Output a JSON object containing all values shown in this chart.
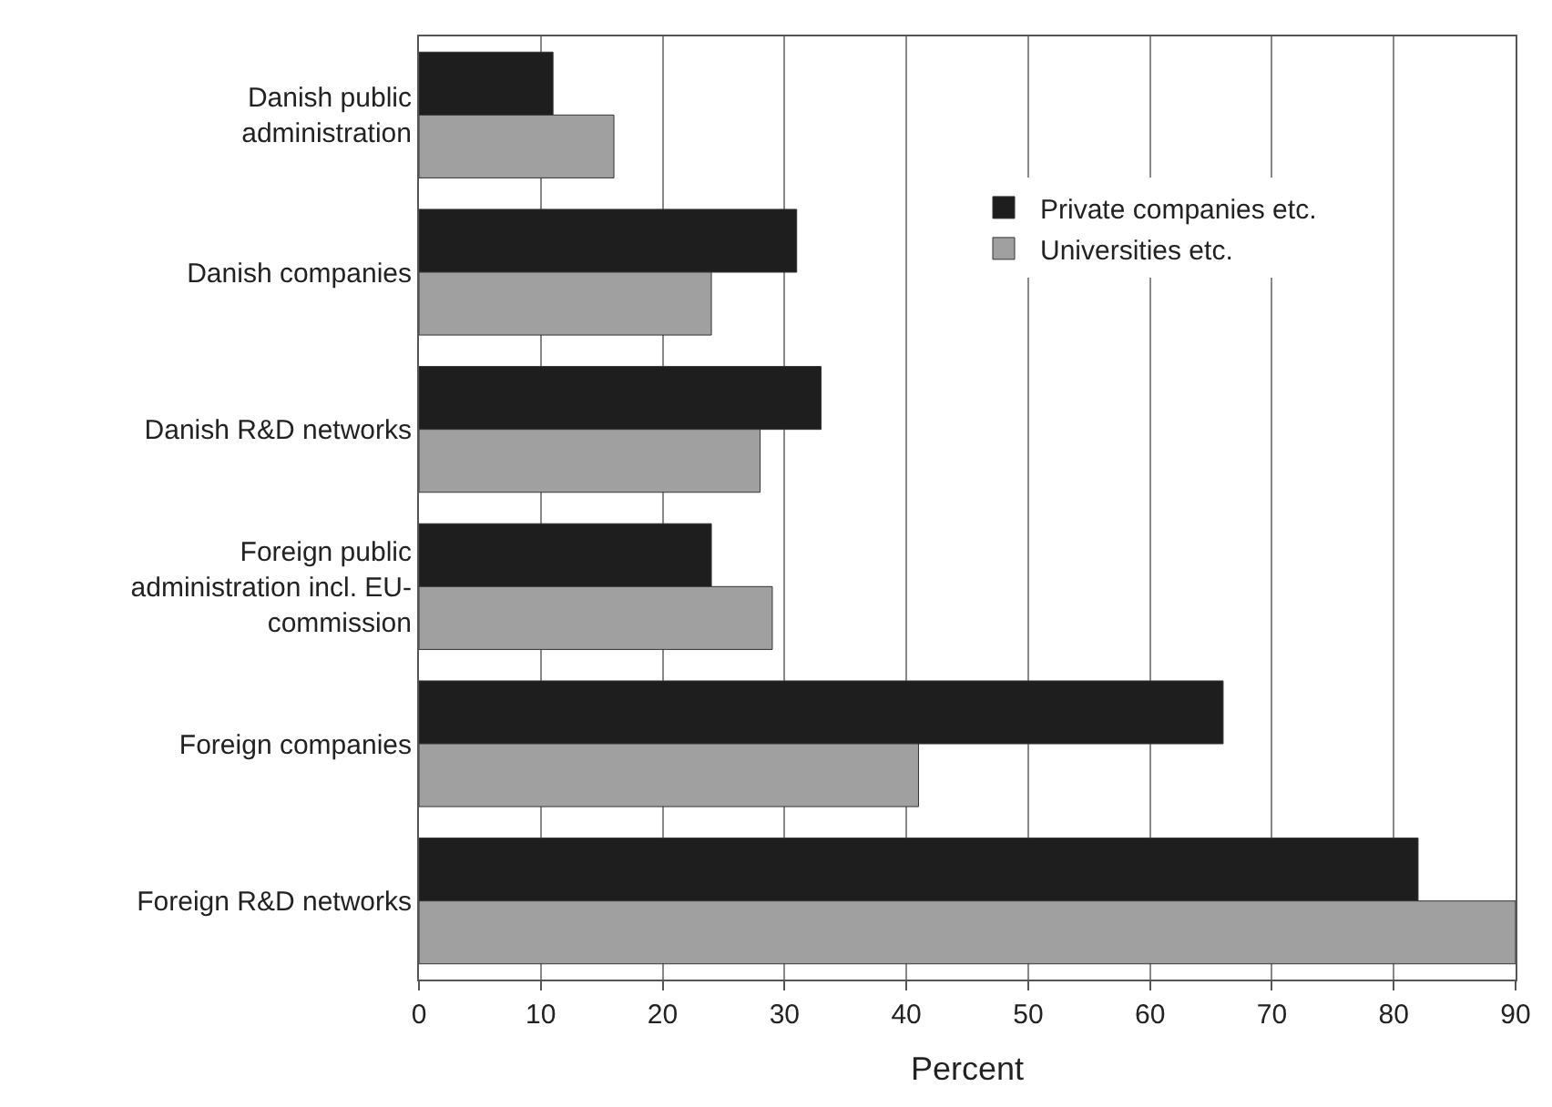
{
  "chart_data": {
    "type": "bar",
    "orientation": "horizontal",
    "xlabel": "Percent",
    "categories": [
      "Danish public administration",
      "Danish companies",
      "Danish R&D networks",
      "Foreign public administration incl. EU-commission",
      "Foreign companies",
      "Foreign R&D networks"
    ],
    "series": [
      {
        "name": "Private companies etc.",
        "color": "#1e1e1e",
        "values": [
          11,
          31,
          33,
          24,
          66,
          82
        ]
      },
      {
        "name": "Universities etc.",
        "color": "#a0a0a0",
        "values": [
          16,
          24,
          28,
          29,
          41,
          90
        ]
      }
    ],
    "xlim": [
      0,
      90
    ],
    "xticks": [
      0,
      10,
      20,
      30,
      40,
      50,
      60,
      70,
      80,
      90
    ],
    "grid": "x",
    "legend": "top right"
  }
}
